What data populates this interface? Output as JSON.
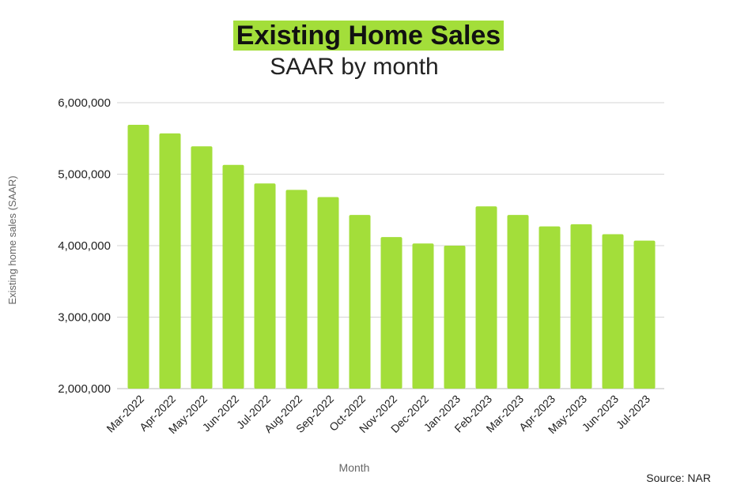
{
  "title": "Existing Home Sales",
  "subtitle": "SAAR by month",
  "source": "Source: NAR",
  "colors": {
    "bar": "#a3de3a",
    "grid": "#d4d4d4",
    "text": "#222222",
    "axis_label": "#666666"
  },
  "chart_data": {
    "type": "bar",
    "title": "Existing Home Sales",
    "subtitle": "SAAR by month",
    "xlabel": "Month",
    "ylabel": "Existing home sales (SAAR)",
    "ylim": [
      2000000,
      6000000
    ],
    "yticks": [
      2000000,
      3000000,
      4000000,
      5000000,
      6000000
    ],
    "ytick_labels": [
      "2,000,000",
      "3,000,000",
      "4,000,000",
      "5,000,000",
      "6,000,000"
    ],
    "grid": true,
    "categories": [
      "Mar-2022",
      "Apr-2022",
      "May-2022",
      "Jun-2022",
      "Jul-2022",
      "Aug-2022",
      "Sep-2022",
      "Oct-2022",
      "Nov-2022",
      "Dec-2022",
      "Jan-2023",
      "Feb-2023",
      "Mar-2023",
      "Apr-2023",
      "May-2023",
      "Jun-2023",
      "Jul-2023"
    ],
    "values": [
      5690000,
      5570000,
      5390000,
      5130000,
      4870000,
      4780000,
      4680000,
      4430000,
      4120000,
      4030000,
      4000000,
      4550000,
      4430000,
      4270000,
      4300000,
      4160000,
      4070000
    ]
  }
}
